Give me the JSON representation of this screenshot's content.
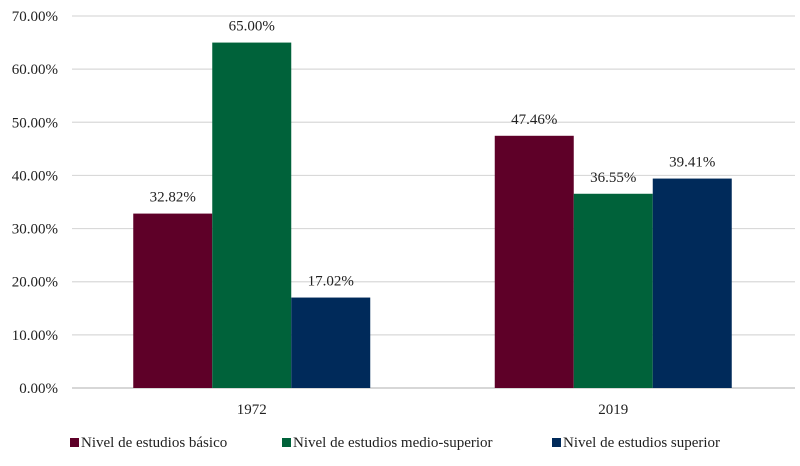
{
  "chart_data": {
    "type": "bar",
    "title": "",
    "xlabel": "",
    "ylabel": "",
    "categories": [
      "1972",
      "2019"
    ],
    "series": [
      {
        "name": "Nivel de estudios básico",
        "values": [
          32.82,
          47.46
        ],
        "labels": [
          "32.82%",
          "47.46%"
        ],
        "color": "#5e0028"
      },
      {
        "name": "Nivel de estudios medio-superior",
        "values": [
          65.0,
          36.55
        ],
        "labels": [
          "65.00%",
          "36.55%"
        ],
        "color": "#00623a"
      },
      {
        "name": "Nivel de estudios superior",
        "values": [
          17.02,
          39.41
        ],
        "labels": [
          "17.02%",
          "39.41%"
        ],
        "color": "#002a5a"
      }
    ],
    "ylim": [
      0,
      70
    ],
    "yticks": [
      "0.00%",
      "10.00%",
      "20.00%",
      "30.00%",
      "40.00%",
      "50.00%",
      "60.00%",
      "70.00%"
    ],
    "grid": true,
    "legend": "bottom"
  }
}
